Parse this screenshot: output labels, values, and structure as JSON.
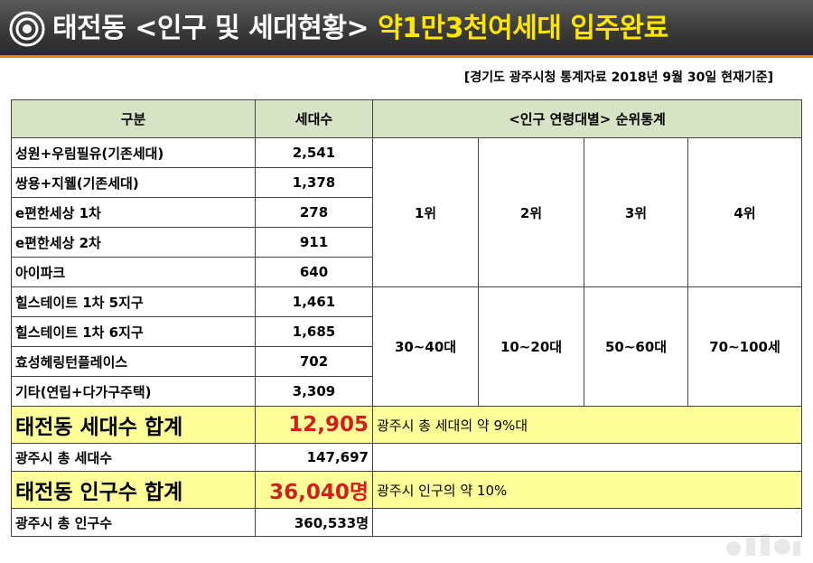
{
  "header": {
    "title_white": "태전동 <인구 및 세대현황>",
    "title_yellow": "약1만3천여세대 입주완료"
  },
  "source_note": "[경기도 광주시청 통계자료 2018년 9월  30일 현재기준]",
  "table": {
    "col_headers": {
      "category": "구분",
      "households": "세대수",
      "ranking": "<인구 연령대별> 순위통계"
    },
    "rows": [
      {
        "name": "성원+우림필유(기존세대)",
        "value": "2,541"
      },
      {
        "name": "쌍용+지웰(기존세대)",
        "value": "1,378"
      },
      {
        "name": "e편한세상 1차",
        "value": "278"
      },
      {
        "name": "e편한세상 2차",
        "value": "911"
      },
      {
        "name": "아이파크",
        "value": "640"
      },
      {
        "name": "힐스테이트 1차 5지구",
        "value": "1,461"
      },
      {
        "name": "힐스테이트 1차 6지구",
        "value": "1,685"
      },
      {
        "name": "효성헤링턴플레이스",
        "value": "702"
      },
      {
        "name": "기타(연립+다가구주택)",
        "value": "3,309"
      }
    ],
    "ranks": [
      "1위",
      "2위",
      "3위",
      "4위"
    ],
    "age_groups": [
      "30~40대",
      "10~20대",
      "50~60대",
      "70~100세"
    ],
    "household_total": {
      "label": "태전동 세대수  합계",
      "value": "12,905",
      "note": "광주시 총 세대의 약 9%대"
    },
    "city_households": {
      "label": "광주시 총 세대수",
      "value": "147,697"
    },
    "population_total": {
      "label": "태전동 인구수  합계",
      "value": "36,040명",
      "note": "광주시 인구의 약 10%"
    },
    "city_population": {
      "label": "광주시 총 인구수",
      "value": "360,533명"
    }
  }
}
